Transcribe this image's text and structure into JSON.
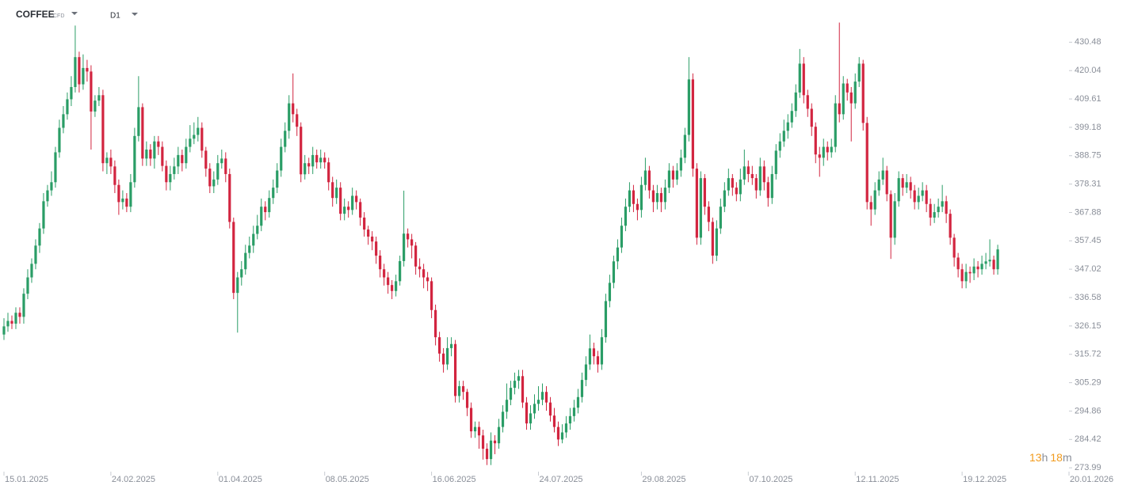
{
  "header": {
    "symbol": "COFFEE",
    "instrument": "CFD",
    "timeframe": "D1"
  },
  "countdown": {
    "hours": "13",
    "hours_unit": "h",
    "minutes": "18",
    "minutes_unit": "m"
  },
  "chart_data": {
    "type": "candlestick",
    "up_color": "#2a9d66",
    "down_color": "#d2243f",
    "xlim": [
      -1,
      275
    ],
    "ylim": [
      272,
      446
    ],
    "xticks": [
      {
        "value": 0,
        "label": "15.01.2025"
      },
      {
        "value": 27,
        "label": "24.02.2025"
      },
      {
        "value": 54,
        "label": "01.04.2025"
      },
      {
        "value": 81,
        "label": "08.05.2025"
      },
      {
        "value": 108,
        "label": "16.06.2025"
      },
      {
        "value": 135,
        "label": "24.07.2025"
      },
      {
        "value": 161,
        "label": "29.08.2025"
      },
      {
        "value": 188,
        "label": "07.10.2025"
      },
      {
        "value": 215,
        "label": "12.11.2025"
      },
      {
        "value": 242,
        "label": "19.12.2025"
      },
      {
        "value": 269,
        "label": "20.01.2026"
      }
    ],
    "yticks": [
      430.48,
      420.04,
      409.61,
      399.18,
      388.75,
      378.31,
      367.88,
      357.45,
      347.02,
      336.58,
      326.15,
      315.72,
      305.29,
      294.86,
      284.42,
      273.99
    ],
    "open": [
      323,
      326,
      328,
      327,
      331,
      329.5,
      338,
      344,
      349,
      355.7,
      362,
      372,
      376,
      379,
      390,
      399,
      404,
      409.5,
      414,
      425,
      415,
      421,
      419.7,
      405,
      409,
      411,
      386,
      388,
      384.8,
      378,
      371.7,
      373,
      370,
      379,
      396,
      406.6,
      387.7,
      391,
      387.7,
      394,
      392,
      385,
      379,
      382,
      384.8,
      389,
      386,
      392,
      395,
      396.4,
      399,
      390.6,
      384,
      377.5,
      380,
      386,
      387.7,
      382,
      364.4,
      338.3,
      344,
      347,
      353,
      355.7,
      360,
      363,
      370,
      368,
      373.2,
      377,
      383.3,
      392,
      397.9,
      408,
      404,
      399.4,
      381.9,
      386,
      384.8,
      389,
      386.3,
      388,
      386.3,
      379,
      373.2,
      377,
      367.4,
      370,
      368.8,
      374,
      371.7,
      366,
      361.6,
      359,
      357.2,
      352,
      347,
      344,
      341.2,
      339,
      342.6,
      350,
      360.1,
      358,
      355.7,
      348,
      347,
      344,
      342.6,
      332,
      322,
      316,
      312,
      318,
      319.5,
      300.4,
      304,
      301.9,
      296,
      287.4,
      289,
      285.9,
      281,
      277.2,
      284,
      283,
      289,
      294.6,
      299,
      303.4,
      306,
      307.7,
      298,
      290.3,
      294,
      297.5,
      299,
      301.9,
      298,
      293.2,
      289,
      284.4,
      287,
      290.3,
      293,
      296.1,
      300,
      306.3,
      312,
      317.9,
      315,
      312,
      322,
      335.3,
      342,
      349.9,
      355,
      363,
      370,
      376,
      371,
      368.8,
      378,
      383.3,
      376,
      371.7,
      375,
      371.7,
      377,
      383.3,
      380,
      383.3,
      388,
      396.4,
      416.8,
      384,
      358.6,
      380.5,
      370,
      364.4,
      352,
      362,
      370,
      376,
      380.5,
      377,
      374.6,
      380,
      384.8,
      382,
      380.5,
      376,
      384.8,
      379,
      373.2,
      382,
      390.6,
      394,
      397.9,
      401,
      405.2,
      412,
      422.6,
      411,
      406,
      399.4,
      389.2,
      388,
      392,
      390,
      392,
      408,
      404,
      415.3,
      412,
      408,
      416,
      422.6,
      400.8,
      371.7,
      369,
      376,
      380,
      383.3,
      374.6,
      358.6,
      372,
      380.5,
      377,
      379,
      376,
      371.7,
      374,
      376,
      371,
      366,
      368,
      370,
      372,
      367.4,
      358.6,
      351.3,
      347,
      342.6,
      346,
      345.5,
      348,
      347,
      349,
      349.9,
      350.5,
      347
    ],
    "high": [
      329,
      331,
      330,
      333,
      333,
      340,
      347,
      351,
      358,
      364,
      375,
      378,
      383,
      392,
      402,
      407,
      412,
      418,
      436.6,
      427,
      426,
      424,
      422,
      411,
      414,
      413,
      390,
      391,
      387,
      380,
      376,
      375,
      382,
      399,
      418,
      408,
      394,
      393,
      396,
      396,
      394,
      387,
      385,
      388,
      392,
      391,
      395,
      400,
      401,
      403,
      401,
      392,
      386,
      383,
      389,
      391,
      390,
      384,
      366,
      346,
      350,
      356,
      359,
      363,
      367,
      373,
      372,
      376,
      380,
      386,
      395,
      401,
      411,
      419,
      406,
      401,
      389,
      388,
      392,
      391,
      391,
      390,
      388,
      381,
      380,
      379,
      373,
      372,
      377,
      376,
      373,
      368,
      363,
      361,
      359,
      354,
      349,
      346,
      343,
      345,
      352,
      375.9,
      362,
      360,
      357,
      351,
      349,
      346,
      344,
      334,
      324,
      318,
      322,
      322,
      321,
      306,
      306,
      303,
      298,
      291,
      291,
      288,
      283,
      287,
      286,
      292,
      297,
      305,
      306,
      309,
      310,
      310,
      300,
      297,
      301,
      304,
      305,
      304,
      300,
      296,
      291,
      290,
      293,
      296,
      299,
      303,
      309,
      315,
      323,
      320,
      317,
      325,
      338,
      345,
      352,
      358,
      366,
      373,
      379,
      378,
      373,
      381,
      388,
      385,
      378,
      378,
      377,
      380,
      386,
      385,
      386,
      391,
      399,
      425,
      419,
      386,
      383,
      382,
      372,
      366,
      365,
      373,
      379,
      384,
      382,
      379,
      384,
      391,
      387,
      385,
      382,
      388,
      387,
      381,
      385,
      393,
      397,
      402,
      404,
      408,
      415,
      428,
      425,
      413,
      408,
      401,
      392,
      395,
      394,
      395,
      411,
      437.7,
      418,
      417,
      414,
      419,
      425,
      424,
      403,
      374,
      379,
      383,
      388,
      385,
      376,
      375,
      383,
      382,
      382,
      381,
      378,
      377,
      379,
      378,
      373,
      371,
      373,
      378,
      374,
      369,
      360,
      353,
      349,
      349,
      348,
      351,
      350,
      352,
      353,
      358,
      352,
      356
    ],
    "low": [
      321,
      324,
      325,
      325,
      327,
      327,
      336,
      342,
      347,
      353,
      360,
      370,
      374,
      377,
      388,
      397,
      402,
      407,
      412,
      412,
      413,
      416,
      391,
      403,
      407,
      383,
      382,
      382,
      375,
      367,
      369,
      368,
      368,
      377,
      394,
      385,
      385,
      385,
      384,
      389,
      383,
      376,
      376,
      380,
      382,
      383,
      384,
      390,
      393,
      394,
      388,
      381,
      375,
      375,
      378,
      384,
      379,
      362,
      336,
      323.7,
      341,
      345,
      351,
      353,
      358,
      361,
      365,
      366,
      371,
      375,
      381,
      390,
      395,
      401,
      396,
      379,
      380,
      382,
      382,
      384,
      384,
      384,
      376,
      370,
      371,
      365,
      365,
      366,
      367,
      369,
      363,
      359,
      356,
      354,
      349,
      344,
      341,
      338,
      336,
      337,
      341,
      348,
      355,
      351,
      345,
      344,
      340,
      339,
      329,
      319,
      313,
      309,
      310,
      315,
      298,
      298,
      299,
      293,
      285,
      285,
      281,
      277,
      275,
      275,
      279,
      281,
      287,
      292,
      297,
      301,
      303,
      296,
      288,
      288,
      292,
      295,
      297,
      295,
      291,
      287,
      282,
      283,
      285,
      288,
      291,
      294,
      298,
      304,
      310,
      312,
      309,
      310,
      320,
      333,
      340,
      347,
      353,
      361,
      368,
      368,
      365,
      366,
      376,
      373,
      368,
      369,
      368,
      369,
      375,
      377,
      378,
      381,
      386,
      394,
      381,
      356,
      356,
      367,
      361,
      349,
      350,
      360,
      368,
      374,
      374,
      372,
      372,
      378,
      379,
      378,
      373,
      374,
      376,
      370,
      371,
      380,
      388,
      392,
      395,
      399,
      403,
      410,
      408,
      403,
      396,
      386,
      381,
      385,
      387,
      388,
      390,
      401,
      402,
      409,
      394,
      406,
      414,
      398,
      369,
      363,
      367,
      374,
      378,
      372,
      350.8,
      356,
      370,
      374,
      375,
      373,
      369,
      369,
      372,
      368,
      363,
      364,
      366,
      368,
      364,
      356,
      348,
      344,
      340,
      340,
      342,
      343,
      344,
      345,
      347,
      348,
      345,
      345
    ],
    "close": [
      326,
      328,
      327,
      331,
      329.5,
      338,
      344,
      349,
      355.7,
      362,
      372,
      376,
      379,
      390,
      399,
      404,
      409.5,
      414,
      425,
      415,
      421,
      419.7,
      405,
      409,
      411,
      386,
      388,
      384.8,
      378,
      371.7,
      373,
      370,
      379,
      396,
      406.6,
      387.7,
      391,
      387.7,
      394,
      392,
      385,
      379,
      382,
      384.8,
      389,
      386,
      392,
      395,
      396.4,
      399,
      390.6,
      384,
      377.5,
      380,
      386,
      387.7,
      382,
      364.4,
      338.3,
      344,
      347,
      353,
      355.7,
      360,
      363,
      370,
      368,
      373.2,
      377,
      383.3,
      392,
      397.9,
      408,
      404,
      399.4,
      381.9,
      386,
      384.8,
      389,
      386.3,
      388,
      386.3,
      379,
      373.2,
      377,
      367.4,
      370,
      368.8,
      374,
      371.7,
      366,
      361.6,
      359,
      357.2,
      352,
      347,
      344,
      341.2,
      339,
      342.6,
      350,
      360.1,
      358,
      355.7,
      348,
      347,
      344,
      342.6,
      332,
      322,
      316,
      312,
      318,
      319.5,
      300.4,
      304,
      301.9,
      296,
      287.4,
      289,
      285.9,
      281,
      277.2,
      284,
      283,
      289,
      294.6,
      299,
      303.4,
      306,
      307.7,
      298,
      290.3,
      294,
      297.5,
      299,
      301.9,
      298,
      293.2,
      289,
      284.4,
      287,
      290.3,
      293,
      296.1,
      300,
      306.3,
      312,
      317.9,
      315,
      312,
      322,
      335.3,
      342,
      349.9,
      355,
      363,
      370,
      376,
      371,
      368.8,
      378,
      383.3,
      376,
      371.7,
      375,
      371.7,
      377,
      383.3,
      380,
      383.3,
      388,
      396.4,
      416.8,
      384,
      358.6,
      380.5,
      370,
      364.4,
      352,
      362,
      370,
      376,
      380.5,
      377,
      374.6,
      380,
      384.8,
      382,
      380.5,
      376,
      384.8,
      379,
      373.2,
      382,
      390.6,
      394,
      397.9,
      401,
      405.2,
      412,
      422.6,
      411,
      406,
      399.4,
      389.2,
      388,
      392,
      390,
      392,
      408,
      404,
      415.3,
      412,
      408,
      416,
      422.6,
      400.8,
      371.7,
      369,
      376,
      380,
      383.3,
      374.6,
      358.6,
      372,
      380.5,
      377,
      379,
      376,
      371.7,
      374,
      376,
      371,
      366,
      368,
      370,
      372,
      367.4,
      358.6,
      351.3,
      347,
      342.6,
      346,
      345.5,
      348,
      347,
      349,
      349.9,
      350.5,
      347,
      354.3
    ]
  }
}
